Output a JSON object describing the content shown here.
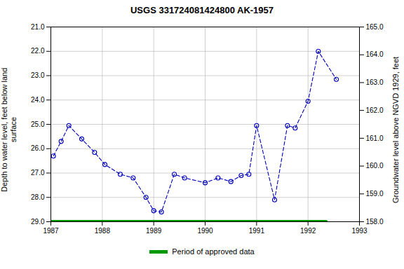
{
  "chart_data": {
    "type": "line",
    "title": "USGS 331724081424800 AK-1957",
    "xlim": [
      1987,
      1993
    ],
    "xticks": [
      1987,
      1988,
      1989,
      1990,
      1991,
      1992,
      1993
    ],
    "ylim": [
      29.0,
      21.0
    ],
    "yticks": [
      {
        "value": 21.0,
        "label": "21.0"
      },
      {
        "value": 22.0,
        "label": "22.0"
      },
      {
        "value": 23.0,
        "label": "23.0"
      },
      {
        "value": 24.0,
        "label": "24.0"
      },
      {
        "value": 25.0,
        "label": "25.0"
      },
      {
        "value": 26.0,
        "label": "26.0"
      },
      {
        "value": 27.0,
        "label": "27.0"
      },
      {
        "value": 28.0,
        "label": "28.0"
      },
      {
        "value": 29.0,
        "label": "29.0"
      }
    ],
    "ylabel": "Depth to water level, feet below land\nsurface",
    "y2lim": [
      158.0,
      165.0
    ],
    "y2ticks": [
      {
        "value": 158.0,
        "label": "158.0"
      },
      {
        "value": 159.0,
        "label": "159.0"
      },
      {
        "value": 160.0,
        "label": "160.0"
      },
      {
        "value": 161.0,
        "label": "161.0"
      },
      {
        "value": 162.0,
        "label": "162.0"
      },
      {
        "value": 163.0,
        "label": "163.0"
      },
      {
        "value": 164.0,
        "label": "164.0"
      },
      {
        "value": 165.0,
        "label": "165.0"
      }
    ],
    "y2label": "Groundwater level above NGVD 1929, feet",
    "grid": true,
    "legend": "bottom",
    "series": [
      {
        "color": "#0000bb",
        "marker": "circle",
        "line_style": "dashed",
        "x": [
          1987.05,
          1987.2,
          1987.35,
          1987.6,
          1987.85,
          1988.05,
          1988.35,
          1988.6,
          1988.85,
          1989.0,
          1989.15,
          1989.4,
          1989.6,
          1990.0,
          1990.25,
          1990.5,
          1990.7,
          1990.85,
          1991.0,
          1991.35,
          1991.6,
          1991.75,
          1992.0,
          1992.2,
          1992.55
        ],
        "values": [
          26.3,
          25.7,
          25.05,
          25.6,
          26.15,
          26.65,
          27.05,
          27.2,
          28.0,
          28.55,
          28.6,
          27.05,
          27.2,
          27.4,
          27.2,
          27.35,
          27.1,
          27.05,
          25.05,
          28.1,
          25.05,
          25.15,
          24.05,
          22.0,
          23.15
        ]
      },
      {
        "name": "Period of approved data",
        "color": "#009900",
        "line_style": "solid",
        "x": [
          1987.0,
          1992.35
        ],
        "values": [
          29.0,
          29.0
        ]
      }
    ]
  }
}
